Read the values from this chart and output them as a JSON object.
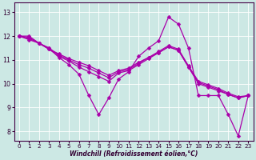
{
  "xlabel": "Windchill (Refroidissement éolien,°C)",
  "bg_color": "#cce8e4",
  "line_color": "#aa00aa",
  "grid_color": "#ffffff",
  "xlim_min": -0.5,
  "xlim_max": 23.5,
  "ylim_min": 7.6,
  "ylim_max": 13.4,
  "yticks": [
    8,
    9,
    10,
    11,
    12,
    13
  ],
  "xticks": [
    0,
    1,
    2,
    3,
    4,
    5,
    6,
    7,
    8,
    9,
    10,
    11,
    12,
    13,
    14,
    15,
    16,
    17,
    18,
    19,
    20,
    21,
    22,
    23
  ],
  "series": [
    [
      12.0,
      12.0,
      11.7,
      11.5,
      11.1,
      10.8,
      10.4,
      9.5,
      8.7,
      9.4,
      10.2,
      10.5,
      11.15,
      11.5,
      11.8,
      12.8,
      12.5,
      11.5,
      9.5,
      9.5,
      9.5,
      8.7,
      7.8,
      9.5
    ],
    [
      12.0,
      11.95,
      11.7,
      11.45,
      11.15,
      10.95,
      10.7,
      10.5,
      10.3,
      10.1,
      10.45,
      10.55,
      10.8,
      11.05,
      11.3,
      11.55,
      11.4,
      10.7,
      10.0,
      9.85,
      9.7,
      9.55,
      9.4,
      9.5
    ],
    [
      12.0,
      11.9,
      11.7,
      11.5,
      11.2,
      11.0,
      10.8,
      10.65,
      10.45,
      10.25,
      10.5,
      10.6,
      10.85,
      11.1,
      11.3,
      11.55,
      11.4,
      10.7,
      10.05,
      9.9,
      9.75,
      9.55,
      9.4,
      9.5
    ],
    [
      12.0,
      11.85,
      11.7,
      11.45,
      11.25,
      11.05,
      10.9,
      10.75,
      10.55,
      10.35,
      10.55,
      10.65,
      10.9,
      11.1,
      11.35,
      11.6,
      11.45,
      10.75,
      10.1,
      9.95,
      9.8,
      9.6,
      9.45,
      9.5
    ]
  ],
  "lw": 0.9,
  "ms": 2.5,
  "label_fontsize": 5.5,
  "tick_fontsize": 5.2
}
